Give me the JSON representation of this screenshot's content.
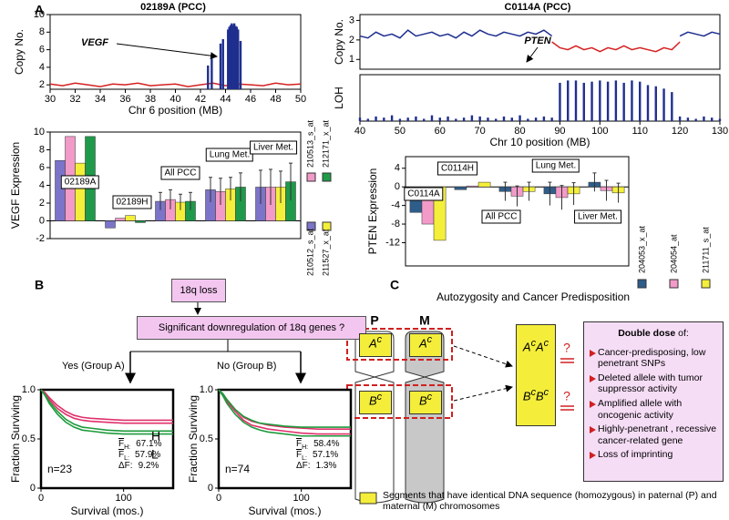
{
  "panel_labels": [
    "A",
    "B",
    "C"
  ],
  "chart_data": [
    {
      "type": "spike",
      "title": "02189A (PCC)",
      "ylabel": "Copy No.",
      "xlabel": "Chr 6 position (MB)",
      "annotation": "VEGF",
      "xlim": [
        30,
        50
      ],
      "xticks": [
        30,
        32,
        34,
        36,
        38,
        40,
        42,
        44,
        46,
        48,
        50
      ],
      "ylim": [
        1.5,
        10
      ],
      "yticks": [
        2,
        4,
        6,
        8,
        10
      ],
      "series": [
        {
          "style": "line",
          "color": "#d42020",
          "x": [
            30,
            31,
            32,
            33,
            34,
            35,
            36,
            37,
            38,
            39,
            40,
            41,
            42,
            43,
            44,
            45,
            46,
            47,
            48,
            49,
            50
          ],
          "values": [
            2.1,
            1.9,
            2.2,
            2.0,
            1.8,
            2.1,
            2.0,
            2.2,
            1.9,
            2.0,
            2.1,
            1.8,
            2.0,
            2.2,
            1.9,
            2.1,
            2.0,
            1.9,
            2.2,
            2.0,
            2.1
          ]
        },
        {
          "style": "bars",
          "color": "#1f2f8f",
          "x": [
            42.6,
            42.9,
            43.6,
            43.8,
            44.2,
            44.3,
            44.4,
            44.5,
            44.6,
            44.7,
            44.8,
            44.9,
            45.0,
            45.2
          ],
          "values": [
            4.2,
            5.0,
            6.7,
            7.2,
            8.3,
            8.6,
            8.8,
            9.0,
            8.8,
            9.0,
            8.7,
            8.6,
            8.3,
            7.0
          ]
        }
      ]
    },
    {
      "type": "spike",
      "title": "C0114A (PCC)",
      "ylabel": "Copy No.",
      "annotation": "PTEN",
      "xlim": [
        40,
        130
      ],
      "ylim": [
        0.5,
        3.3
      ],
      "yticks": [
        1,
        2,
        3
      ],
      "series": [
        {
          "style": "line",
          "color": "#1f2f8f",
          "x": [
            40,
            42,
            44,
            46,
            48,
            50,
            52,
            54,
            56,
            58,
            60,
            62,
            64,
            66,
            68,
            70,
            72,
            74,
            76,
            78,
            80,
            82,
            84,
            86,
            88
          ],
          "values": [
            2.2,
            2.1,
            2.4,
            2.2,
            2.3,
            2.1,
            2.5,
            2.2,
            2.3,
            2.4,
            2.2,
            2.3,
            2.1,
            2.4,
            2.2,
            2.5,
            2.3,
            2.2,
            2.4,
            2.3,
            2.2,
            2.4,
            2.3,
            2.5,
            2.2
          ]
        },
        {
          "style": "line",
          "color": "#d42020",
          "x": [
            88,
            90,
            92,
            94,
            96,
            98,
            100,
            102,
            104,
            106,
            108,
            110,
            112,
            114,
            116,
            118,
            120
          ],
          "values": [
            1.9,
            1.6,
            1.5,
            1.7,
            1.5,
            1.6,
            1.4,
            1.6,
            1.5,
            1.7,
            1.5,
            1.6,
            1.5,
            1.4,
            1.6,
            1.5,
            1.9
          ]
        },
        {
          "style": "line",
          "color": "#1f2f8f",
          "x": [
            120,
            122,
            124,
            126,
            128,
            130
          ],
          "values": [
            2.2,
            2.4,
            2.3,
            2.2,
            2.4,
            2.3
          ]
        }
      ]
    },
    {
      "type": "spike",
      "ylabel": "LOH",
      "xlabel": "Chr 10 position (MB)",
      "xlim": [
        40,
        130
      ],
      "xticks": [
        40,
        50,
        60,
        70,
        80,
        90,
        100,
        110,
        120,
        130
      ],
      "ylim": [
        0,
        40
      ],
      "series": [
        {
          "style": "bars",
          "color": "#1f2f8f",
          "x": [
            40,
            42,
            44,
            46,
            48,
            50,
            52,
            54,
            56,
            58,
            60,
            62,
            64,
            66,
            68,
            70,
            72,
            74,
            76,
            78,
            80,
            82,
            84,
            86,
            88,
            90,
            92,
            94,
            96,
            98,
            100,
            102,
            104,
            106,
            108,
            110,
            112,
            114,
            116,
            118,
            120,
            122,
            124,
            126,
            128,
            130
          ],
          "values": [
            3,
            2,
            4,
            3,
            5,
            2,
            3,
            4,
            2,
            5,
            3,
            4,
            2,
            3,
            5,
            4,
            3,
            2,
            4,
            3,
            5,
            2,
            3,
            4,
            3,
            33,
            35,
            35,
            33,
            34,
            35,
            34,
            35,
            33,
            35,
            34,
            31,
            30,
            28,
            25,
            4,
            3,
            2,
            4,
            3,
            2
          ]
        }
      ]
    },
    {
      "type": "grouped_bar",
      "ylabel": "VEGF Expression",
      "categories": [
        "02189A",
        "02189H",
        "All PCC",
        "Lung Met.",
        "Liver Met."
      ],
      "ylim": [
        -2,
        10
      ],
      "yticks": [
        -2,
        0,
        2,
        4,
        6,
        8,
        10
      ],
      "series": [
        {
          "name": "210512_s_at",
          "color": "#7b74c8",
          "values": [
            6.8,
            -0.8,
            2.2,
            3.5,
            3.8
          ],
          "errors": [
            null,
            null,
            1.0,
            1.4,
            1.9
          ]
        },
        {
          "name": "210513_s_at",
          "color": "#f29ac8",
          "values": [
            9.5,
            0.3,
            2.4,
            3.3,
            3.8
          ],
          "errors": [
            null,
            null,
            1.1,
            1.5,
            2.0
          ]
        },
        {
          "name": "211527_x_at",
          "color": "#f4ef3a",
          "values": [
            6.5,
            0.6,
            2.1,
            3.6,
            3.8
          ],
          "errors": [
            null,
            null,
            0.9,
            1.3,
            1.8
          ]
        },
        {
          "name": "212171_x_at",
          "color": "#1f9a4a",
          "values": [
            9.5,
            -0.2,
            2.2,
            3.8,
            4.4
          ],
          "errors": [
            null,
            null,
            1.0,
            1.6,
            2.1
          ]
        }
      ]
    },
    {
      "type": "grouped_bar",
      "ylabel": "PTEN  Expression",
      "categories": [
        "C0114A",
        "C0114H",
        "All PCC",
        "Lung Met.",
        "Liver Met."
      ],
      "ylim": [
        -17,
        6.5
      ],
      "yticks": [
        -12,
        -8,
        -4,
        0,
        4
      ],
      "series": [
        {
          "name": "204053_x_at",
          "color": "#2f5d8a",
          "values": [
            -5.5,
            -0.6,
            -1.0,
            -1.5,
            1.0
          ],
          "errors": [
            null,
            null,
            2.0,
            2.5,
            2.0
          ]
        },
        {
          "name": "204054_at",
          "color": "#f29ac8",
          "values": [
            -8.0,
            0.2,
            -2.0,
            -2.3,
            -0.8
          ],
          "errors": [
            null,
            null,
            2.2,
            2.6,
            2.2
          ]
        },
        {
          "name": "211711_s_at",
          "color": "#f4ef3a",
          "values": [
            -11.5,
            1.0,
            -1.0,
            -1.5,
            -1.3
          ],
          "errors": [
            null,
            null,
            2.0,
            2.4,
            2.1
          ]
        }
      ]
    },
    {
      "type": "survival",
      "ylabel": "Fraction Surviving",
      "xlabel": "Survival (mos.)",
      "n_label": "n=23",
      "high_label": "H",
      "low_label": "L",
      "stats": [
        {
          "symbol": "F",
          "sub": "H:",
          "value": "67.1%"
        },
        {
          "symbol": "F",
          "sub": "L:",
          "value": "57.9%"
        },
        {
          "symbol": "ΔF:",
          "value": "9.2%"
        }
      ],
      "xlim": [
        0,
        160
      ],
      "xticks": [
        0,
        100
      ],
      "ylim": [
        0,
        1
      ],
      "yticks": [
        0,
        0.5,
        {
          "value": 1,
          "label": "1.0"
        }
      ],
      "x": [
        0,
        5,
        10,
        20,
        30,
        40,
        50,
        60,
        80,
        100,
        120,
        160
      ],
      "series": [
        {
          "color": "#e0306a",
          "values": [
            1,
            0.97,
            0.92,
            0.84,
            0.78,
            0.74,
            0.72,
            0.71,
            0.7,
            0.69,
            0.69,
            0.69
          ]
        },
        {
          "color": "#e0306a",
          "values": [
            1,
            0.96,
            0.9,
            0.81,
            0.75,
            0.71,
            0.69,
            0.68,
            0.67,
            0.66,
            0.66,
            0.66
          ]
        },
        {
          "color": "#1e9a3c",
          "values": [
            1,
            0.95,
            0.88,
            0.78,
            0.7,
            0.65,
            0.62,
            0.61,
            0.59,
            0.58,
            0.58,
            0.58
          ]
        },
        {
          "color": "#1e9a3c",
          "values": [
            1,
            0.94,
            0.86,
            0.75,
            0.67,
            0.62,
            0.59,
            0.58,
            0.56,
            0.55,
            0.55,
            0.55
          ]
        }
      ]
    },
    {
      "type": "survival",
      "ylabel": "Fraction Surviving",
      "xlabel": "Survival (mos.)",
      "n_label": "n=74",
      "stats": [
        {
          "symbol": "F",
          "sub": "H:",
          "value": "58.4%"
        },
        {
          "symbol": "F",
          "sub": "L:",
          "value": "57.1%"
        },
        {
          "symbol": "ΔF:",
          "value": "1.3%"
        }
      ],
      "xlim": [
        0,
        160
      ],
      "xticks": [
        0,
        100
      ],
      "ylim": [
        0,
        1
      ],
      "yticks": [
        0,
        0.5,
        {
          "value": 1,
          "label": "1.0"
        }
      ],
      "x": [
        0,
        5,
        10,
        20,
        30,
        40,
        50,
        60,
        80,
        100,
        120,
        160
      ],
      "series": [
        {
          "color": "#e0306a",
          "values": [
            1,
            0.96,
            0.9,
            0.8,
            0.72,
            0.68,
            0.66,
            0.64,
            0.62,
            0.61,
            0.6,
            0.6
          ]
        },
        {
          "color": "#e0306a",
          "values": [
            1,
            0.95,
            0.88,
            0.78,
            0.69,
            0.64,
            0.62,
            0.6,
            0.58,
            0.56,
            0.55,
            0.55
          ]
        },
        {
          "color": "#1e9a3c",
          "values": [
            1,
            0.96,
            0.9,
            0.8,
            0.73,
            0.69,
            0.66,
            0.65,
            0.63,
            0.62,
            0.62,
            0.62
          ]
        },
        {
          "color": "#1e9a3c",
          "values": [
            1,
            0.94,
            0.86,
            0.75,
            0.67,
            0.62,
            0.59,
            0.57,
            0.55,
            0.53,
            0.53,
            0.53
          ]
        }
      ]
    }
  ],
  "flowchart": {
    "start": "18q loss",
    "question": "Significant downregulation of 18q genes ?",
    "yes": "Yes (Group A)",
    "no": "No (Group  B)"
  },
  "autozygosity": {
    "title": "Autozygosity and Cancer Predisposition",
    "chromosomes": [
      "P",
      "M"
    ],
    "segments": [
      {
        "base": "A",
        "sup": "c"
      },
      {
        "base": "B",
        "sup": "c"
      }
    ],
    "question": "?",
    "box_title": "Double dose",
    "box_title_suffix": "of:",
    "items": [
      "Cancer-predisposing, low penetrant SNPs",
      "Deleted allele with tumor suppressor activity",
      "Amplified allele with oncogenic activity",
      "Highly-penetrant , recessive cancer-related gene",
      "Loss of imprinting"
    ],
    "legend": "Segments that have identical DNA sequence (homozygous)  in paternal (P) and maternal (M) chromosomes"
  }
}
